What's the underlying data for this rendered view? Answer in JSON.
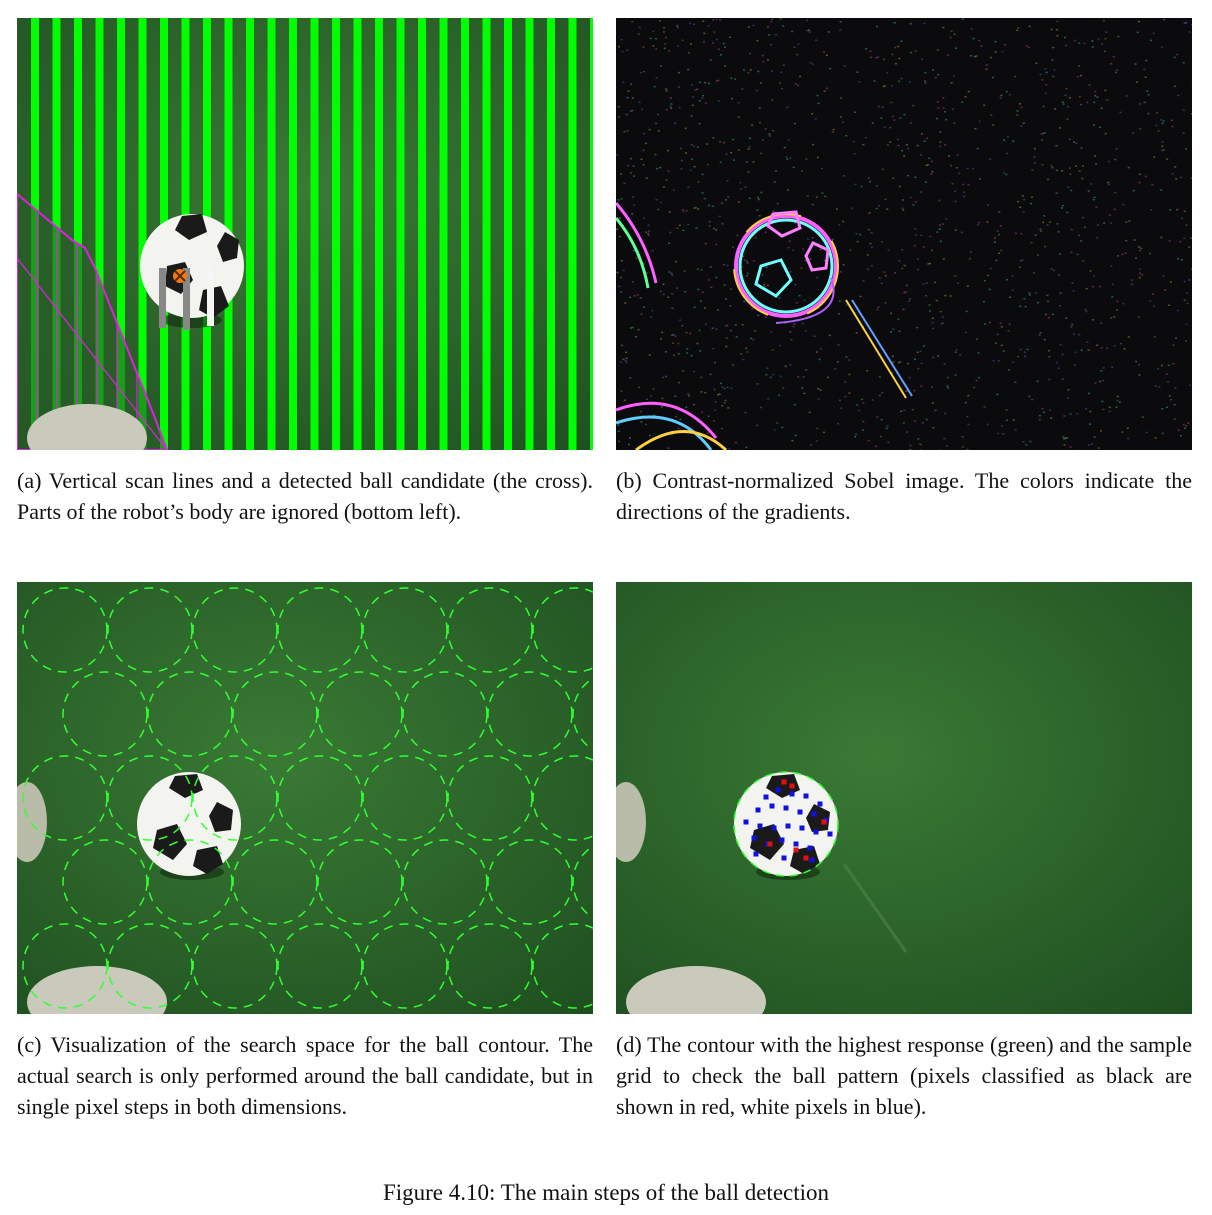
{
  "panels": [
    {
      "id": "a",
      "caption": "(a) Vertical scan lines and a detected ball candidate (the cross). Parts of the robot’s body are ignored (bottom left)."
    },
    {
      "id": "b",
      "caption": "(b) Contrast-normalized Sobel image. The colors indicate the directions of the gradients."
    },
    {
      "id": "c",
      "caption": "(c) Visualization of the search space for the ball contour. The actual search is only performed around the ball candidate, but in single pixel steps in both dimensions."
    },
    {
      "id": "d",
      "caption": "(d) The contour with the highest response (green) and the sample grid to check the ball pattern (pixels classified as black are shown in red, white pixels in blue)."
    }
  ],
  "figure_caption": "Figure 4.10: The main steps of the ball detection",
  "colors": {
    "field_green": "#2f6b2c",
    "scan_line": "#00ff00",
    "robot_outline": "#e020e0",
    "candidate_cross": "#f07a10",
    "contour": "#33ff33",
    "black_samples": "#e01010",
    "white_samples": "#1010e0"
  }
}
